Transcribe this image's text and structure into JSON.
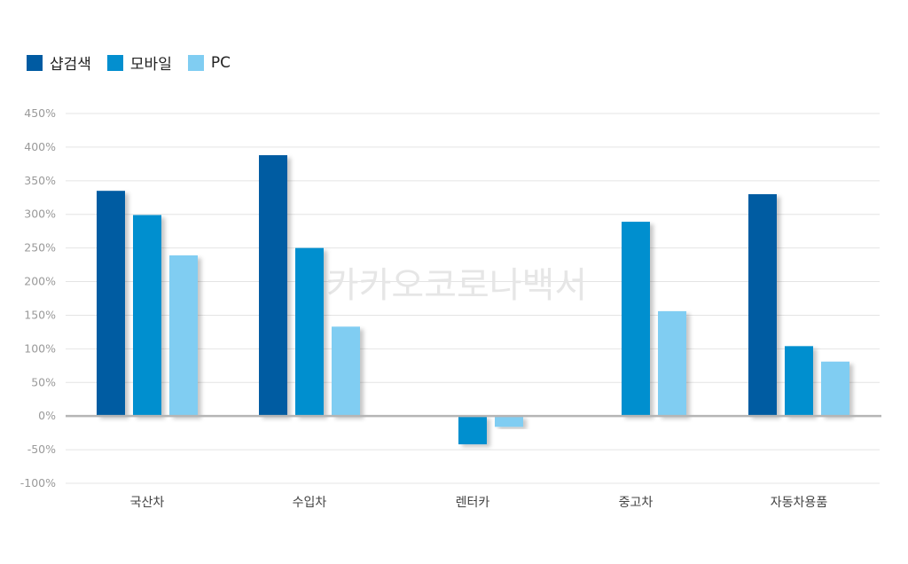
{
  "watermark": "카카오코로나백서",
  "chart_data": {
    "type": "bar",
    "categories": [
      "국산차",
      "수입차",
      "렌터카",
      "중고차",
      "자동차용품"
    ],
    "series": [
      {
        "name": "샵검색",
        "color": "#005ba2",
        "values": [
          335,
          388,
          null,
          null,
          330
        ]
      },
      {
        "name": "모바일",
        "color": "#038fcf",
        "values": [
          299,
          250,
          -42,
          289,
          104
        ]
      },
      {
        "name": "PC",
        "color": "#80cdf2",
        "values": [
          239,
          133,
          -16,
          156,
          81
        ]
      }
    ],
    "yticks": [
      "450%",
      "400%",
      "350%",
      "300%",
      "250%",
      "200%",
      "150%",
      "100%",
      "50%",
      "0%",
      "-50%",
      "-100%"
    ],
    "ylim": [
      -100,
      450
    ],
    "grid": true,
    "legend": "top-left"
  }
}
